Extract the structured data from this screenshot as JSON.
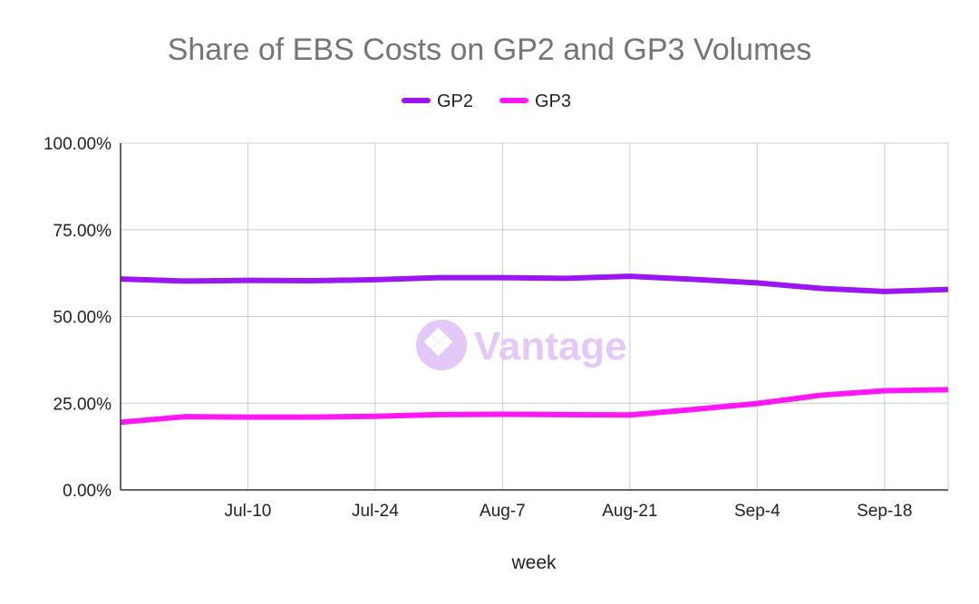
{
  "chart_data": {
    "type": "line",
    "title": "Share of EBS Costs on GP2 and GP3 Volumes",
    "xlabel": "week",
    "ylabel": "",
    "x": [
      "Jun-26",
      "Jul-3",
      "Jul-10",
      "Jul-17",
      "Jul-24",
      "Jul-31",
      "Aug-7",
      "Aug-14",
      "Aug-21",
      "Aug-28",
      "Sep-4",
      "Sep-11",
      "Sep-18",
      "Sep-25"
    ],
    "x_tick_labels": [
      "Jul-10",
      "Jul-24",
      "Aug-7",
      "Aug-21",
      "Sep-4",
      "Sep-18"
    ],
    "y_tick_labels": [
      "0.00%",
      "25.00%",
      "50.00%",
      "75.00%",
      "100.00%"
    ],
    "ylim": [
      0,
      100
    ],
    "y_unit": "%",
    "grid": true,
    "legend_position": "top",
    "series": [
      {
        "name": "GP2",
        "color": "#9b16f2",
        "values": [
          60.8,
          60.2,
          60.4,
          60.3,
          60.6,
          61.2,
          61.2,
          61.0,
          61.6,
          60.7,
          59.7,
          58.1,
          57.2,
          57.8
        ]
      },
      {
        "name": "GP3",
        "color": "#ff18f5",
        "values": [
          19.5,
          21.1,
          21.0,
          21.0,
          21.2,
          21.7,
          21.8,
          21.7,
          21.6,
          23.2,
          24.9,
          27.3,
          28.6,
          28.9
        ]
      }
    ]
  },
  "watermark": {
    "text": "Vantage",
    "color": "#e4c8f7",
    "icon": "vantage-logo-icon"
  }
}
